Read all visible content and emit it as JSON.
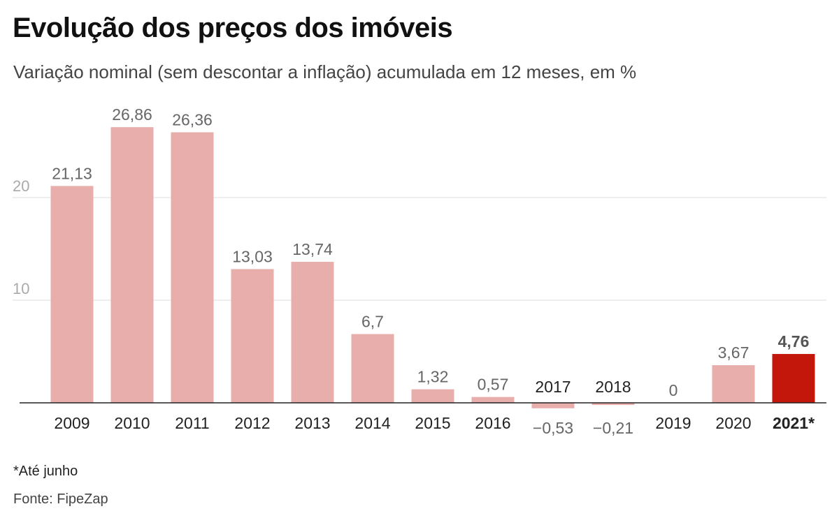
{
  "header": {
    "title": "Evolução dos preços dos imóveis",
    "subtitle": "Variação nominal (sem descontar a inflação) acumulada em 12 meses, em %"
  },
  "footer": {
    "note": "*Até junho",
    "source": "Fonte: FipeZap"
  },
  "colors": {
    "bar": "#e8aeab",
    "highlight": "#c4170c",
    "grid": "#dddddd",
    "axis": "#222222",
    "value_label": "#666666",
    "tick_label": "#aaaaaa"
  },
  "chart_data": {
    "type": "bar",
    "title": "Evolução dos preços dos imóveis",
    "subtitle": "Variação nominal (sem descontar a inflação) acumulada em 12 meses, em %",
    "categories": [
      "2009",
      "2010",
      "2011",
      "2012",
      "2013",
      "2014",
      "2015",
      "2016",
      "2017",
      "2018",
      "2019",
      "2020",
      "2021*"
    ],
    "values": [
      21.13,
      26.86,
      26.36,
      13.03,
      13.74,
      6.7,
      1.32,
      0.57,
      -0.53,
      -0.21,
      0,
      3.67,
      4.76
    ],
    "value_labels": [
      "21,13",
      "26,86",
      "26,36",
      "13,03",
      "13,74",
      "6,7",
      "1,32",
      "0,57",
      "−0,53",
      "−0,21",
      "0",
      "3,67",
      "4,76"
    ],
    "highlight_category": "2021*",
    "y_ticks": [
      10,
      20
    ],
    "y_tick_labels": [
      "10",
      "20"
    ],
    "ylim": [
      -1,
      30
    ],
    "grid": true,
    "xlabel": "",
    "ylabel": ""
  }
}
